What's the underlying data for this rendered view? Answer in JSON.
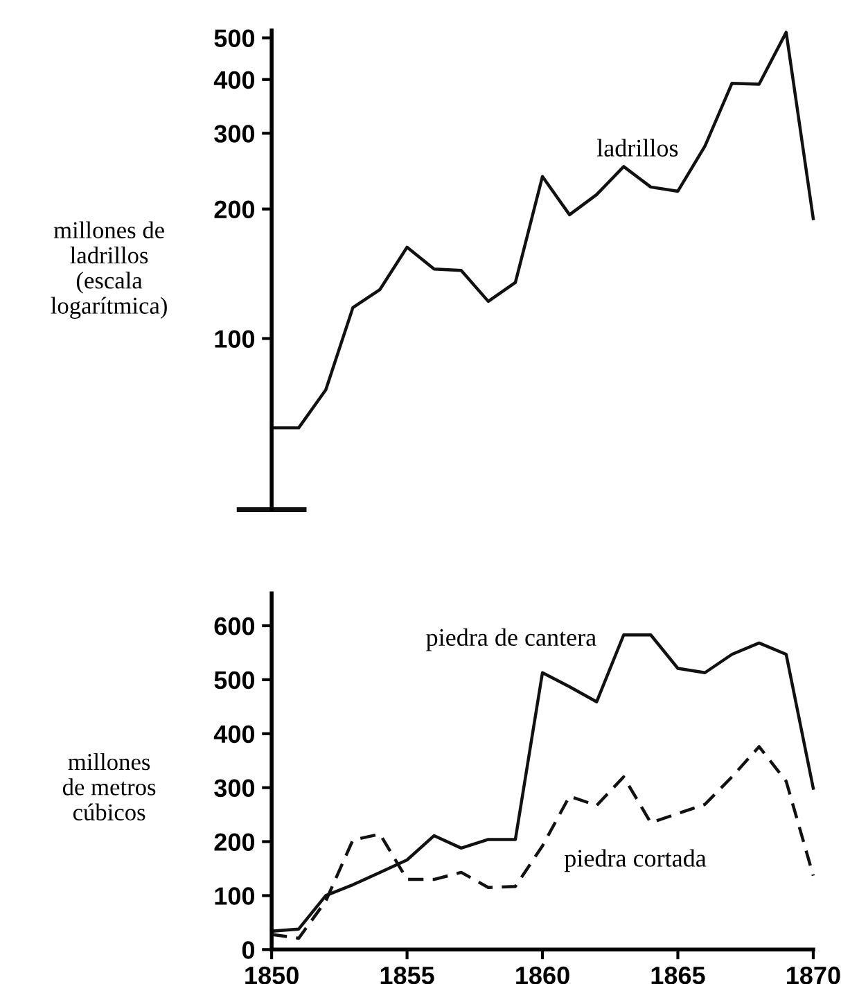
{
  "chart_data": [
    {
      "type": "line",
      "ylabel": "millones de\nladrillos\n(escala\nlogarítmica)",
      "log": "y",
      "x": [
        1850,
        1851,
        1852,
        1853,
        1854,
        1855,
        1856,
        1857,
        1858,
        1859,
        1860,
        1861,
        1862,
        1863,
        1864,
        1865,
        1866,
        1867,
        1868,
        1869,
        1870
      ],
      "series": [
        {
          "name": "ladrillos",
          "color": "#111111",
          "line_style": "solid",
          "values": [
            62,
            62,
            76,
            118,
            130,
            163,
            145,
            144,
            122,
            135,
            238,
            194,
            216,
            251,
            225,
            220,
            280,
            392,
            390,
            515,
            190
          ]
        }
      ],
      "xlim": [
        1850,
        1870
      ],
      "ylim": [
        40,
        520
      ],
      "yticks": [
        100,
        200,
        300,
        400,
        500
      ],
      "tick_labels": "y",
      "grid": false,
      "legend": false
    },
    {
      "type": "line",
      "ylabel": "millones\nde metros\ncúbicos",
      "x": [
        1850,
        1851,
        1852,
        1853,
        1854,
        1855,
        1856,
        1857,
        1858,
        1859,
        1860,
        1861,
        1862,
        1863,
        1864,
        1865,
        1866,
        1867,
        1868,
        1869,
        1870
      ],
      "series": [
        {
          "name": "piedra de cantera",
          "color": "#111111",
          "line_style": "solid",
          "values": [
            34,
            38,
            100,
            120,
            143,
            166,
            211,
            188,
            204,
            204,
            513,
            487,
            459,
            583,
            583,
            521,
            513,
            547,
            568,
            547,
            299
          ]
        },
        {
          "name": "piedra cortada",
          "color": "#111111",
          "line_style": "dashed",
          "values": [
            28,
            21,
            90,
            203,
            214,
            130,
            130,
            143,
            115,
            117,
            192,
            284,
            267,
            320,
            235,
            252,
            269,
            320,
            376,
            312,
            137
          ]
        }
      ],
      "xlim": [
        1850,
        1870
      ],
      "ylim": [
        0,
        660
      ],
      "xticks": [
        1850,
        1855,
        1860,
        1865,
        1870
      ],
      "yticks": [
        0,
        100,
        200,
        300,
        400,
        500,
        600
      ],
      "grid": false,
      "legend": false
    }
  ]
}
